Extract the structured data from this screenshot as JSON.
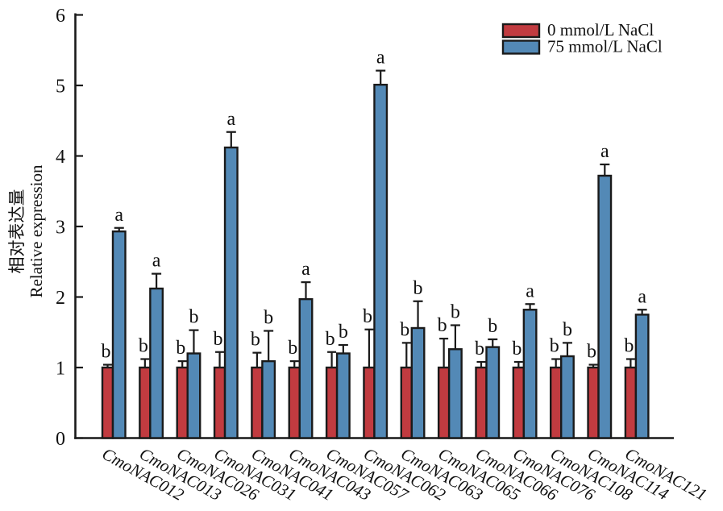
{
  "figure": {
    "y_axis_title_zh": "相对表达量",
    "y_axis_title_en": "Relative expression"
  },
  "legend": [
    {
      "label": "0 mmol/L NaCl",
      "color": "#c13b40"
    },
    {
      "label": "75 mmol/L NaCl",
      "color": "#5389b6"
    }
  ],
  "chart_data": {
    "type": "bar",
    "title": "",
    "xlabel": "",
    "ylabel": "相对表达量 Relative expression",
    "ylim": [
      0,
      6
    ],
    "yticks": [
      0,
      1,
      2,
      3,
      4,
      5,
      6
    ],
    "grid": false,
    "legend_position": "top-right",
    "error_bars": true,
    "categories": [
      "CmoNAC012",
      "CmoNAC013",
      "CmoNAC026",
      "CmoNAC031",
      "CmoNAC041",
      "CmoNAC043",
      "CmoNAC057",
      "CmoNAC062",
      "CmoNAC063",
      "CmoNAC065",
      "CmoNAC066",
      "CmoNAC076",
      "CmoNAC108",
      "CmoNAC114",
      "CmoNAC121"
    ],
    "series": [
      {
        "name": "0 mmol/L NaCl",
        "color": "#c13b40",
        "values": [
          1.0,
          1.0,
          1.0,
          1.0,
          1.0,
          1.0,
          1.0,
          1.0,
          1.0,
          1.0,
          1.0,
          1.0,
          1.0,
          1.0,
          1.0
        ],
        "errors": [
          0.04,
          0.12,
          0.09,
          0.22,
          0.21,
          0.09,
          0.22,
          0.54,
          0.35,
          0.41,
          0.08,
          0.08,
          0.12,
          0.04,
          0.12
        ],
        "sig_letters": [
          "b",
          "b",
          "b",
          "b",
          "b",
          "b",
          "b",
          "b",
          "b",
          "b",
          "b",
          "b",
          "b",
          "b",
          "b"
        ]
      },
      {
        "name": "75 mmol/L NaCl",
        "color": "#5389b6",
        "values": [
          2.93,
          2.12,
          1.2,
          4.12,
          1.09,
          1.97,
          1.2,
          5.01,
          1.56,
          1.26,
          1.29,
          1.82,
          1.16,
          3.72,
          1.75
        ],
        "errors": [
          0.05,
          0.21,
          0.33,
          0.22,
          0.43,
          0.24,
          0.12,
          0.2,
          0.38,
          0.34,
          0.11,
          0.08,
          0.19,
          0.16,
          0.07
        ],
        "sig_letters": [
          "a",
          "a",
          "b",
          "a",
          "b",
          "a",
          "b",
          "a",
          "b",
          "b",
          "b",
          "a",
          "b",
          "a",
          "a"
        ]
      }
    ]
  }
}
